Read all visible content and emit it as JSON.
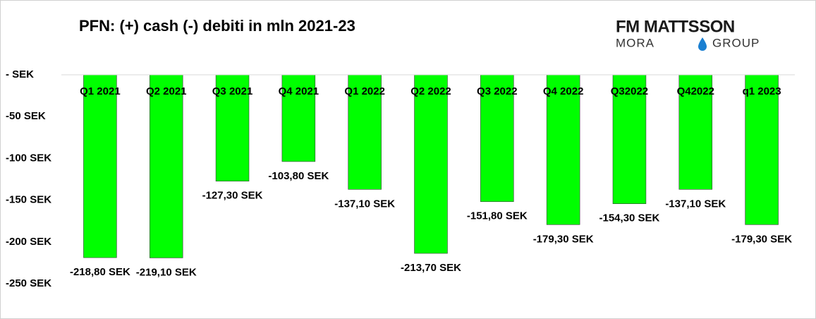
{
  "chart_data": {
    "type": "bar",
    "title": "PFN: (+) cash (-) debiti in mln 2021-23",
    "categories": [
      "Q1 2021",
      "Q2 2021",
      "Q3 2021",
      "Q4 2021",
      "Q1 2022",
      "Q2 2022",
      "Q3 2022",
      "Q4 2022",
      "Q32022",
      "Q42022",
      "q1 2023"
    ],
    "values": [
      -218.8,
      -219.1,
      -127.3,
      -103.8,
      -137.1,
      -213.7,
      -151.8,
      -179.3,
      -154.3,
      -137.1,
      -179.3
    ],
    "value_labels": [
      "-218,80 SEK",
      "-219,10 SEK",
      "-127,30 SEK",
      "-103,80 SEK",
      "-137,10 SEK",
      "-213,70 SEK",
      "-151,80 SEK",
      "-179,30 SEK",
      "-154,30 SEK",
      "-137,10 SEK",
      "-179,30 SEK"
    ],
    "color": "#00ff00",
    "ylim": [
      -250,
      0
    ],
    "yticks": [
      {
        "value": 0,
        "label": "- SEK"
      },
      {
        "value": -50,
        "label": "-50 SEK"
      },
      {
        "value": -100,
        "label": "-100 SEK"
      },
      {
        "value": -150,
        "label": "-150 SEK"
      },
      {
        "value": -200,
        "label": "-200 SEK"
      },
      {
        "value": -250,
        "label": "-250 SEK"
      }
    ],
    "grid": false
  },
  "logo": {
    "line1": "FM MATTSSON",
    "line2a": "MORA",
    "line2b": "GROUP"
  }
}
